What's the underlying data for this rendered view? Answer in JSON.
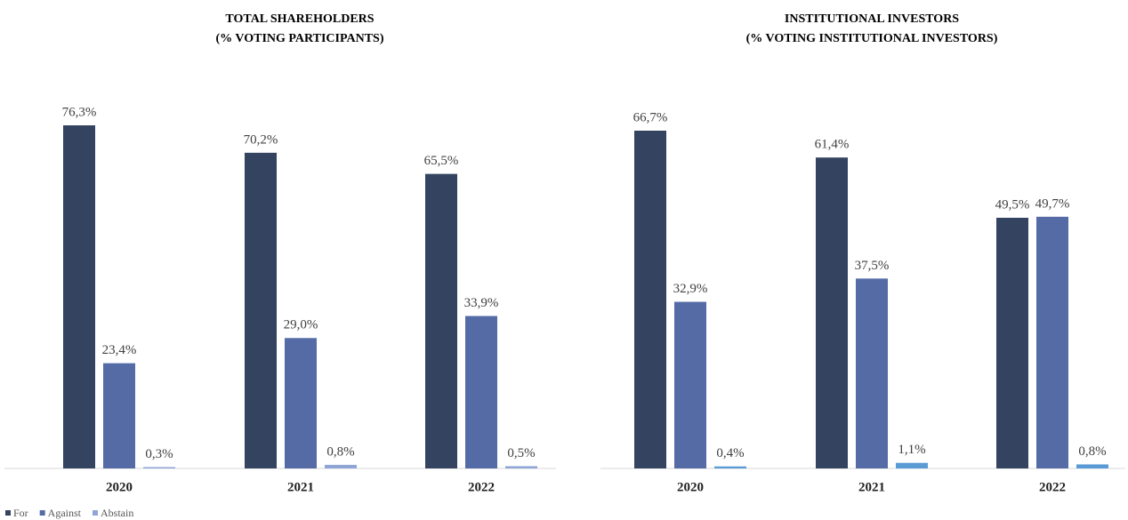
{
  "chart_data": [
    {
      "type": "bar",
      "title": "TOTAL SHAREHOLDERS",
      "subtitle": "(% VOTING PARTICIPANTS)",
      "categories": [
        "2020",
        "2021",
        "2022"
      ],
      "series": [
        {
          "name": "For",
          "color": "#334360",
          "values": [
            76.3,
            70.2,
            65.5
          ],
          "value_labels": [
            "76,3%",
            "70,2%",
            "65,5%"
          ]
        },
        {
          "name": "Against",
          "color": "#546ba6",
          "values": [
            23.4,
            29.0,
            33.9
          ],
          "value_labels": [
            "23,4%",
            "29,0%",
            "33,9%"
          ]
        },
        {
          "name": "Abstain",
          "color": "#8fa5d6",
          "values": [
            0.3,
            0.8,
            0.5
          ],
          "value_labels": [
            "0,3%",
            "0,8%",
            "0,5%"
          ]
        }
      ]
    },
    {
      "type": "bar",
      "title": "INSTITUTIONAL INVESTORS",
      "subtitle": "(% VOTING INSTITUTIONAL INVESTORS)",
      "categories": [
        "2020",
        "2021",
        "2022"
      ],
      "series": [
        {
          "color": "#334360",
          "values": [
            66.7,
            61.4,
            49.5
          ],
          "value_labels": [
            "66,7%",
            "61,4%",
            "49,5%"
          ]
        },
        {
          "color": "#546ba6",
          "values": [
            32.9,
            37.5,
            49.7
          ],
          "value_labels": [
            "32,9%",
            "37,5%",
            "49,7%"
          ]
        },
        {
          "color": "#5b9bd5",
          "values": [
            0.4,
            1.1,
            0.8
          ],
          "value_labels": [
            "0,4%",
            "1,1%",
            "0,8%"
          ]
        }
      ]
    }
  ]
}
